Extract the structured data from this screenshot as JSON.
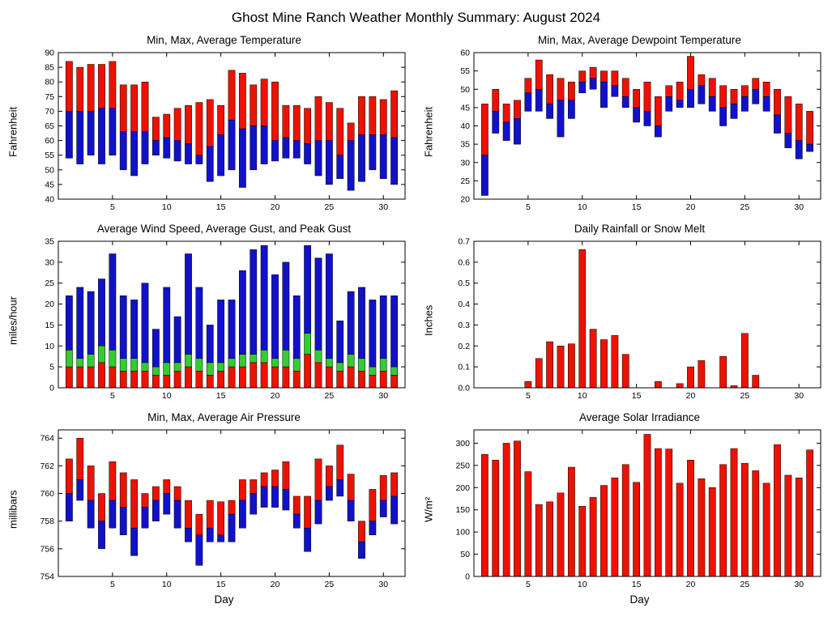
{
  "page_title": "Ghost Mine Ranch Weather Monthly Summary: August 2024",
  "colors": {
    "red": "#ee1100",
    "blue": "#1111cc",
    "green": "#33cc33",
    "axis": "#000000"
  },
  "chart_data": [
    {
      "type": "range",
      "title": "Min, Max, Average Temperature",
      "ylabel": "Fahrenheit",
      "xlabel": "",
      "xlim": [
        0,
        32
      ],
      "ylim": [
        40,
        90
      ],
      "xticks": [
        5,
        10,
        15,
        20,
        25,
        30
      ],
      "yticks": [
        40,
        45,
        50,
        55,
        60,
        65,
        70,
        75,
        80,
        85,
        90
      ],
      "x": [
        1,
        2,
        3,
        4,
        5,
        6,
        7,
        8,
        9,
        10,
        11,
        12,
        13,
        14,
        15,
        16,
        17,
        18,
        19,
        20,
        21,
        22,
        23,
        24,
        25,
        26,
        27,
        28,
        29,
        30,
        31
      ],
      "series": [
        {
          "name": "min",
          "values": [
            54,
            52,
            55,
            52,
            55,
            50,
            48,
            52,
            55,
            54,
            53,
            52,
            52,
            46,
            48,
            50,
            44,
            50,
            52,
            53,
            54,
            54,
            52,
            48,
            45,
            47,
            43,
            46,
            50,
            47,
            45
          ]
        },
        {
          "name": "avg",
          "values": [
            70,
            70,
            70,
            71,
            71,
            63,
            63,
            63,
            60,
            61,
            60,
            59,
            55,
            58,
            62,
            67,
            64,
            65,
            65,
            60,
            61,
            60,
            59,
            60,
            60,
            55,
            60,
            62,
            62,
            62,
            61
          ]
        },
        {
          "name": "max",
          "values": [
            87,
            85,
            86,
            86,
            87,
            79,
            79,
            80,
            68,
            69,
            71,
            72,
            73,
            74,
            72,
            84,
            83,
            79,
            81,
            80,
            72,
            72,
            71,
            75,
            73,
            71,
            66,
            75,
            75,
            74,
            77
          ]
        }
      ]
    },
    {
      "type": "range",
      "title": "Min, Max, Average Dewpoint Temperature",
      "ylabel": "Fahrenheit",
      "xlabel": "",
      "xlim": [
        0,
        32
      ],
      "ylim": [
        20,
        60
      ],
      "xticks": [
        5,
        10,
        15,
        20,
        25,
        30
      ],
      "yticks": [
        20,
        25,
        30,
        35,
        40,
        45,
        50,
        55,
        60
      ],
      "x": [
        1,
        2,
        3,
        4,
        5,
        6,
        7,
        8,
        9,
        10,
        11,
        12,
        13,
        14,
        15,
        16,
        17,
        18,
        19,
        20,
        21,
        22,
        23,
        24,
        25,
        26,
        27,
        28,
        29,
        30,
        31
      ],
      "series": [
        {
          "name": "min",
          "values": [
            21,
            38,
            36,
            35,
            44,
            44,
            42,
            37,
            42,
            49,
            50,
            45,
            48,
            45,
            41,
            40,
            37,
            44,
            45,
            45,
            46,
            44,
            40,
            42,
            44,
            46,
            44,
            38,
            34,
            31,
            33
          ]
        },
        {
          "name": "avg",
          "values": [
            32,
            44,
            41,
            42,
            49,
            50,
            46,
            47,
            47,
            52,
            53,
            52,
            51,
            48,
            45,
            44,
            40,
            48,
            47,
            50,
            51,
            48,
            45,
            46,
            48,
            50,
            48,
            43,
            38,
            36,
            35
          ]
        },
        {
          "name": "max",
          "values": [
            46,
            50,
            46,
            47,
            53,
            58,
            54,
            53,
            52,
            55,
            56,
            55,
            55,
            53,
            50,
            52,
            48,
            51,
            52,
            59,
            54,
            53,
            51,
            50,
            51,
            53,
            52,
            50,
            48,
            46,
            44
          ]
        }
      ]
    },
    {
      "type": "windstack",
      "title": "Average Wind Speed, Average Gust, and Peak Gust",
      "ylabel": "miles/hour",
      "xlabel": "",
      "xlim": [
        0,
        32
      ],
      "ylim": [
        0,
        35
      ],
      "xticks": [
        5,
        10,
        15,
        20,
        25,
        30
      ],
      "yticks": [
        0,
        5,
        10,
        15,
        20,
        25,
        30,
        35
      ],
      "x": [
        1,
        2,
        3,
        4,
        5,
        6,
        7,
        8,
        9,
        10,
        11,
        12,
        13,
        14,
        15,
        16,
        17,
        18,
        19,
        20,
        21,
        22,
        23,
        24,
        25,
        26,
        27,
        28,
        29,
        30,
        31
      ],
      "series": [
        {
          "name": "avg_wind_speed",
          "values": [
            5,
            5,
            5,
            6,
            5,
            4,
            4,
            4,
            3,
            3,
            4,
            5,
            4,
            3,
            4,
            5,
            5,
            6,
            6,
            5,
            5,
            4,
            8,
            6,
            5,
            4,
            5,
            4,
            3,
            4,
            3
          ]
        },
        {
          "name": "avg_gust",
          "values": [
            9,
            7,
            8,
            10,
            9,
            7,
            7,
            6,
            5,
            6,
            6,
            8,
            7,
            6,
            6,
            7,
            8,
            8,
            9,
            7,
            9,
            7,
            13,
            9,
            7,
            6,
            8,
            7,
            5,
            7,
            5
          ]
        },
        {
          "name": "peak_gust",
          "values": [
            22,
            24,
            23,
            26,
            32,
            22,
            21,
            25,
            14,
            24,
            17,
            32,
            24,
            15,
            21,
            21,
            28,
            33,
            34,
            27,
            30,
            22,
            34,
            31,
            32,
            16,
            23,
            24,
            21,
            22,
            22
          ]
        }
      ]
    },
    {
      "type": "bar",
      "title": "Daily Rainfall or Snow Melt",
      "ylabel": "Inches",
      "xlabel": "",
      "xlim": [
        0,
        32
      ],
      "ylim": [
        0,
        0.7
      ],
      "xticks": [
        5,
        10,
        15,
        20,
        25,
        30
      ],
      "yticks": [
        0,
        0.1,
        0.2,
        0.3,
        0.4,
        0.5,
        0.6,
        0.7
      ],
      "ytick_labels": [
        "0.0",
        "0.1",
        "0.2",
        "0.3",
        "0.4",
        "0.5",
        "0.6",
        "0.7"
      ],
      "x": [
        1,
        2,
        3,
        4,
        5,
        6,
        7,
        8,
        9,
        10,
        11,
        12,
        13,
        14,
        15,
        16,
        17,
        18,
        19,
        20,
        21,
        22,
        23,
        24,
        25,
        26,
        27,
        28,
        29,
        30,
        31
      ],
      "values": [
        0,
        0,
        0,
        0,
        0.03,
        0.14,
        0.22,
        0.2,
        0.21,
        0.66,
        0.28,
        0.23,
        0.25,
        0.16,
        0,
        0,
        0.03,
        0,
        0.02,
        0.1,
        0.13,
        0,
        0.15,
        0.01,
        0.26,
        0.06,
        0,
        0,
        0,
        0,
        0
      ]
    },
    {
      "type": "range",
      "title": "Min, Max, Average Air Pressure",
      "ylabel": "millibars",
      "xlabel": "Day",
      "xlim": [
        0,
        32
      ],
      "ylim": [
        754,
        764.6
      ],
      "xticks": [
        5,
        10,
        15,
        20,
        25,
        30
      ],
      "yticks": [
        754,
        756,
        758,
        760,
        762,
        764
      ],
      "x": [
        1,
        2,
        3,
        4,
        5,
        6,
        7,
        8,
        9,
        10,
        11,
        12,
        13,
        14,
        15,
        16,
        17,
        18,
        19,
        20,
        21,
        22,
        23,
        24,
        25,
        26,
        27,
        28,
        29,
        30,
        31
      ],
      "series": [
        {
          "name": "min",
          "values": [
            758,
            759.5,
            757.5,
            756,
            757.5,
            757,
            755.5,
            757.5,
            758,
            758.5,
            757.5,
            756.5,
            754.8,
            756.5,
            756.5,
            756.5,
            757.5,
            758.5,
            759,
            759,
            758.8,
            757.5,
            755.8,
            757.8,
            759.5,
            759.8,
            758,
            755.3,
            757,
            758.3,
            757.8
          ]
        },
        {
          "name": "avg",
          "values": [
            760,
            761,
            759.5,
            758,
            759.5,
            759,
            757.5,
            759,
            759.5,
            760,
            759.5,
            757.5,
            757,
            757.5,
            757,
            758.5,
            759.5,
            760,
            760.5,
            760.5,
            760.3,
            758.5,
            757.5,
            759.5,
            760.5,
            761,
            759.5,
            756.5,
            758,
            759.5,
            759.8
          ]
        },
        {
          "name": "max",
          "values": [
            762.5,
            764,
            762,
            760,
            762.3,
            761.5,
            761,
            760,
            760.5,
            761,
            760.5,
            759.5,
            758.5,
            759.5,
            759.4,
            759.5,
            761,
            761,
            761.5,
            761.7,
            762.3,
            759.8,
            759.8,
            762.5,
            762,
            763.5,
            761.4,
            758,
            760.3,
            761.3,
            761.5
          ]
        }
      ]
    },
    {
      "type": "bar",
      "title": "Average Solar Irradiance",
      "ylabel": "W/m²",
      "xlabel": "Day",
      "xlim": [
        0,
        32
      ],
      "ylim": [
        0,
        330
      ],
      "xticks": [
        5,
        10,
        15,
        20,
        25,
        30
      ],
      "yticks": [
        0,
        50,
        100,
        150,
        200,
        250,
        300
      ],
      "x": [
        1,
        2,
        3,
        4,
        5,
        6,
        7,
        8,
        9,
        10,
        11,
        12,
        13,
        14,
        15,
        16,
        17,
        18,
        19,
        20,
        21,
        22,
        23,
        24,
        25,
        26,
        27,
        28,
        29,
        30,
        31
      ],
      "values": [
        275,
        262,
        300,
        305,
        236,
        162,
        168,
        188,
        246,
        158,
        178,
        205,
        222,
        252,
        212,
        320,
        288,
        287,
        210,
        262,
        220,
        200,
        252,
        288,
        255,
        238,
        210,
        297,
        228,
        222,
        285
      ]
    }
  ]
}
